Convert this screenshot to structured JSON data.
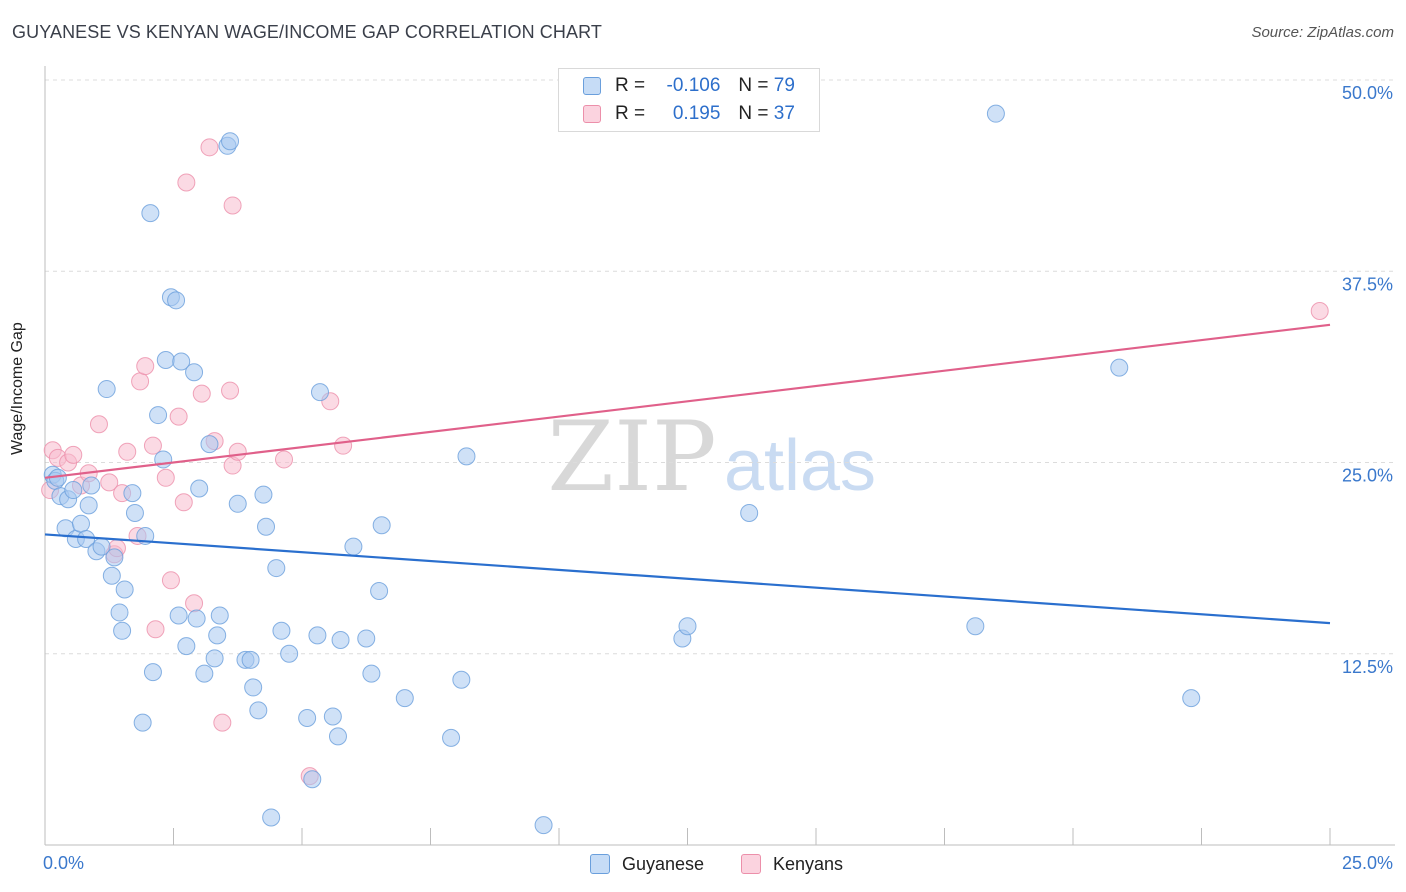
{
  "title": "GUYANESE VS KENYAN WAGE/INCOME GAP CORRELATION CHART",
  "source": "Source: ZipAtlas.com",
  "watermark": {
    "zip": "ZIP",
    "atlas": "atlas"
  },
  "legend": {
    "rows": [
      {
        "r_label": "R =",
        "r_value": "-0.106",
        "n_label": "N =",
        "n_value": "79"
      },
      {
        "r_label": "R =",
        "r_value": "0.195",
        "n_label": "N =",
        "n_value": "37"
      }
    ]
  },
  "colors": {
    "guyanese_fill": "#a8c8f0",
    "guyanese_stroke": "#6a9fdc",
    "guyanese_line": "#2a6fce",
    "kenyans_fill": "#f7bccd",
    "kenyans_stroke": "#ec8faa",
    "kenyans_line": "#e0608a",
    "tick_label": "#3a78cc",
    "grid": "#dcdcdc"
  },
  "chart_data": {
    "type": "scatter",
    "title": "GUYANESE VS KENYAN WAGE/INCOME GAP CORRELATION CHART",
    "xlabel": "",
    "ylabel": "Wage/Income Gap",
    "xlim": [
      0,
      25
    ],
    "ylim": [
      0,
      50
    ],
    "x_tick_labels": [
      "0.0%",
      "25.0%"
    ],
    "y_ticks": [
      12.5,
      25.0,
      37.5,
      50.0
    ],
    "y_tick_labels": [
      "12.5%",
      "25.0%",
      "37.5%",
      "50.0%"
    ],
    "series": [
      {
        "name": "Guyanese",
        "R": -0.106,
        "N": 79,
        "trend": {
          "x": [
            0,
            25
          ],
          "y": [
            20.3,
            14.5
          ]
        },
        "points": [
          [
            0.15,
            24.2
          ],
          [
            0.2,
            23.8
          ],
          [
            0.25,
            24.0
          ],
          [
            0.3,
            22.8
          ],
          [
            0.4,
            20.7
          ],
          [
            0.45,
            22.6
          ],
          [
            0.55,
            23.2
          ],
          [
            0.6,
            20.0
          ],
          [
            0.7,
            21.0
          ],
          [
            0.8,
            20.0
          ],
          [
            0.85,
            22.2
          ],
          [
            0.9,
            23.5
          ],
          [
            1.0,
            19.2
          ],
          [
            1.1,
            19.5
          ],
          [
            1.2,
            29.8
          ],
          [
            1.3,
            17.6
          ],
          [
            1.35,
            18.8
          ],
          [
            1.45,
            15.2
          ],
          [
            1.5,
            14.0
          ],
          [
            1.55,
            16.7
          ],
          [
            1.7,
            23.0
          ],
          [
            1.75,
            21.7
          ],
          [
            1.9,
            8.0
          ],
          [
            1.95,
            20.2
          ],
          [
            2.05,
            41.3
          ],
          [
            2.1,
            11.3
          ],
          [
            2.2,
            28.1
          ],
          [
            2.3,
            25.2
          ],
          [
            2.35,
            31.7
          ],
          [
            2.45,
            35.8
          ],
          [
            2.55,
            35.6
          ],
          [
            2.6,
            15.0
          ],
          [
            2.65,
            31.6
          ],
          [
            2.75,
            13.0
          ],
          [
            2.9,
            30.9
          ],
          [
            2.95,
            14.8
          ],
          [
            3.0,
            23.3
          ],
          [
            3.1,
            11.2
          ],
          [
            3.2,
            26.2
          ],
          [
            3.3,
            12.2
          ],
          [
            3.35,
            13.7
          ],
          [
            3.4,
            15.0
          ],
          [
            3.55,
            45.7
          ],
          [
            3.6,
            46.0
          ],
          [
            3.75,
            22.3
          ],
          [
            3.9,
            12.1
          ],
          [
            4.0,
            12.1
          ],
          [
            4.05,
            10.3
          ],
          [
            4.15,
            8.8
          ],
          [
            4.25,
            22.9
          ],
          [
            4.3,
            20.8
          ],
          [
            4.4,
            1.8
          ],
          [
            4.5,
            18.1
          ],
          [
            4.6,
            14.0
          ],
          [
            4.75,
            12.5
          ],
          [
            5.1,
            8.3
          ],
          [
            5.2,
            4.3
          ],
          [
            5.3,
            13.7
          ],
          [
            5.35,
            29.6
          ],
          [
            5.6,
            8.4
          ],
          [
            5.7,
            7.1
          ],
          [
            5.75,
            13.4
          ],
          [
            6.0,
            19.5
          ],
          [
            6.25,
            13.5
          ],
          [
            6.35,
            11.2
          ],
          [
            6.5,
            16.6
          ],
          [
            6.55,
            20.9
          ],
          [
            7.0,
            9.6
          ],
          [
            7.9,
            7.0
          ],
          [
            8.1,
            10.8
          ],
          [
            8.2,
            25.4
          ],
          [
            9.7,
            1.3
          ],
          [
            12.4,
            13.5
          ],
          [
            12.5,
            14.3
          ],
          [
            13.7,
            21.7
          ],
          [
            18.1,
            14.3
          ],
          [
            18.5,
            47.8
          ],
          [
            20.9,
            31.2
          ],
          [
            22.3,
            9.6
          ]
        ]
      },
      {
        "name": "Kenyans",
        "R": 0.195,
        "N": 37,
        "trend": {
          "x": [
            0,
            25
          ],
          "y": [
            24.0,
            34.0
          ]
        },
        "points": [
          [
            0.1,
            23.2
          ],
          [
            0.15,
            25.8
          ],
          [
            0.25,
            25.3
          ],
          [
            0.45,
            25.0
          ],
          [
            0.55,
            25.5
          ],
          [
            0.7,
            23.5
          ],
          [
            0.85,
            24.3
          ],
          [
            1.05,
            27.5
          ],
          [
            1.25,
            23.7
          ],
          [
            1.35,
            19.0
          ],
          [
            1.4,
            19.4
          ],
          [
            1.5,
            23.0
          ],
          [
            1.6,
            25.7
          ],
          [
            1.8,
            20.2
          ],
          [
            1.85,
            30.3
          ],
          [
            1.95,
            31.3
          ],
          [
            2.1,
            26.1
          ],
          [
            2.15,
            14.1
          ],
          [
            2.35,
            24.0
          ],
          [
            2.45,
            17.3
          ],
          [
            2.6,
            28.0
          ],
          [
            2.7,
            22.4
          ],
          [
            2.75,
            43.3
          ],
          [
            2.9,
            15.8
          ],
          [
            3.05,
            29.5
          ],
          [
            3.2,
            45.6
          ],
          [
            3.3,
            26.4
          ],
          [
            3.45,
            8.0
          ],
          [
            3.6,
            29.7
          ],
          [
            3.65,
            41.8
          ],
          [
            3.65,
            24.8
          ],
          [
            3.75,
            25.7
          ],
          [
            4.65,
            25.2
          ],
          [
            5.15,
            4.5
          ],
          [
            5.55,
            29.0
          ],
          [
            5.8,
            26.1
          ],
          [
            24.8,
            34.9
          ]
        ]
      }
    ]
  },
  "bottom_legend": [
    {
      "label": "Guyanese"
    },
    {
      "label": "Kenyans"
    }
  ]
}
